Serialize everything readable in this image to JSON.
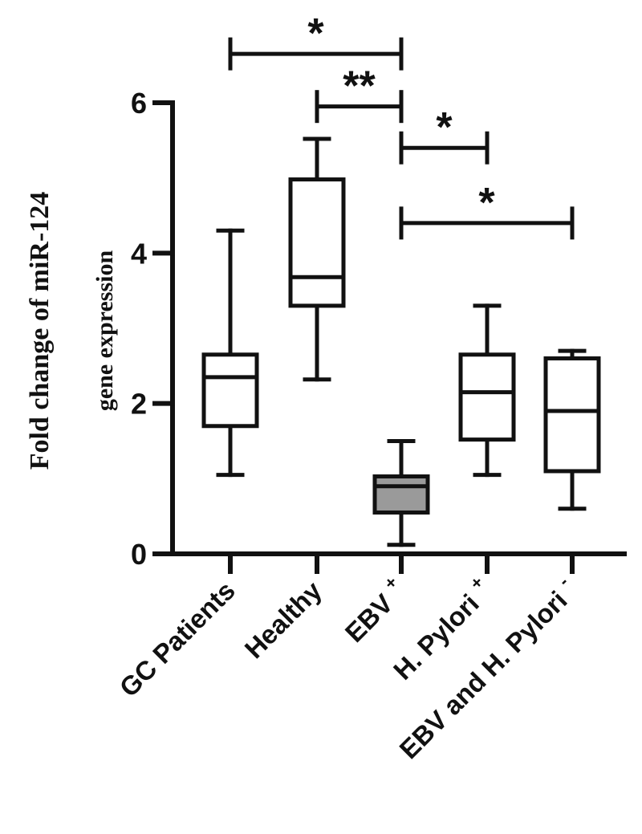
{
  "chart_data": {
    "type": "box",
    "ylabel": [
      "Fold change of miR-124",
      "gene expression"
    ],
    "xlabel": "",
    "ylim": [
      0,
      6
    ],
    "yticks": [
      0,
      2,
      4,
      6
    ],
    "grid": false,
    "categories": [
      {
        "label": "GC Patients",
        "sup": ""
      },
      {
        "label": "Healthy",
        "sup": ""
      },
      {
        "label": "EBV",
        "sup": "+"
      },
      {
        "label": "H. Pylori",
        "sup": "+"
      },
      {
        "label": "EBV and H. Pylori",
        "sup": "-"
      }
    ],
    "boxes": [
      {
        "min": 1.05,
        "q1": 1.7,
        "median": 2.35,
        "q3": 2.65,
        "max": 4.3,
        "fill": "#ffffff"
      },
      {
        "min": 2.32,
        "q1": 3.3,
        "median": 3.68,
        "q3": 4.98,
        "max": 5.52,
        "fill": "#ffffff"
      },
      {
        "min": 0.12,
        "q1": 0.55,
        "median": 0.9,
        "q3": 1.03,
        "max": 1.5,
        "fill": "#9a9a9a"
      },
      {
        "min": 1.05,
        "q1": 1.52,
        "median": 2.15,
        "q3": 2.65,
        "max": 3.3,
        "fill": "#ffffff"
      },
      {
        "min": 0.6,
        "q1": 1.1,
        "median": 1.9,
        "q3": 2.6,
        "max": 2.7,
        "fill": "#ffffff"
      }
    ],
    "significance": [
      {
        "from": 0,
        "to": 2,
        "y": 6.65,
        "label": "*"
      },
      {
        "from": 1,
        "to": 2,
        "y": 5.95,
        "label": "**"
      },
      {
        "from": 2,
        "to": 3,
        "y": 5.4,
        "label": "*"
      },
      {
        "from": 2,
        "to": 4,
        "y": 4.4,
        "label": "*"
      }
    ]
  }
}
